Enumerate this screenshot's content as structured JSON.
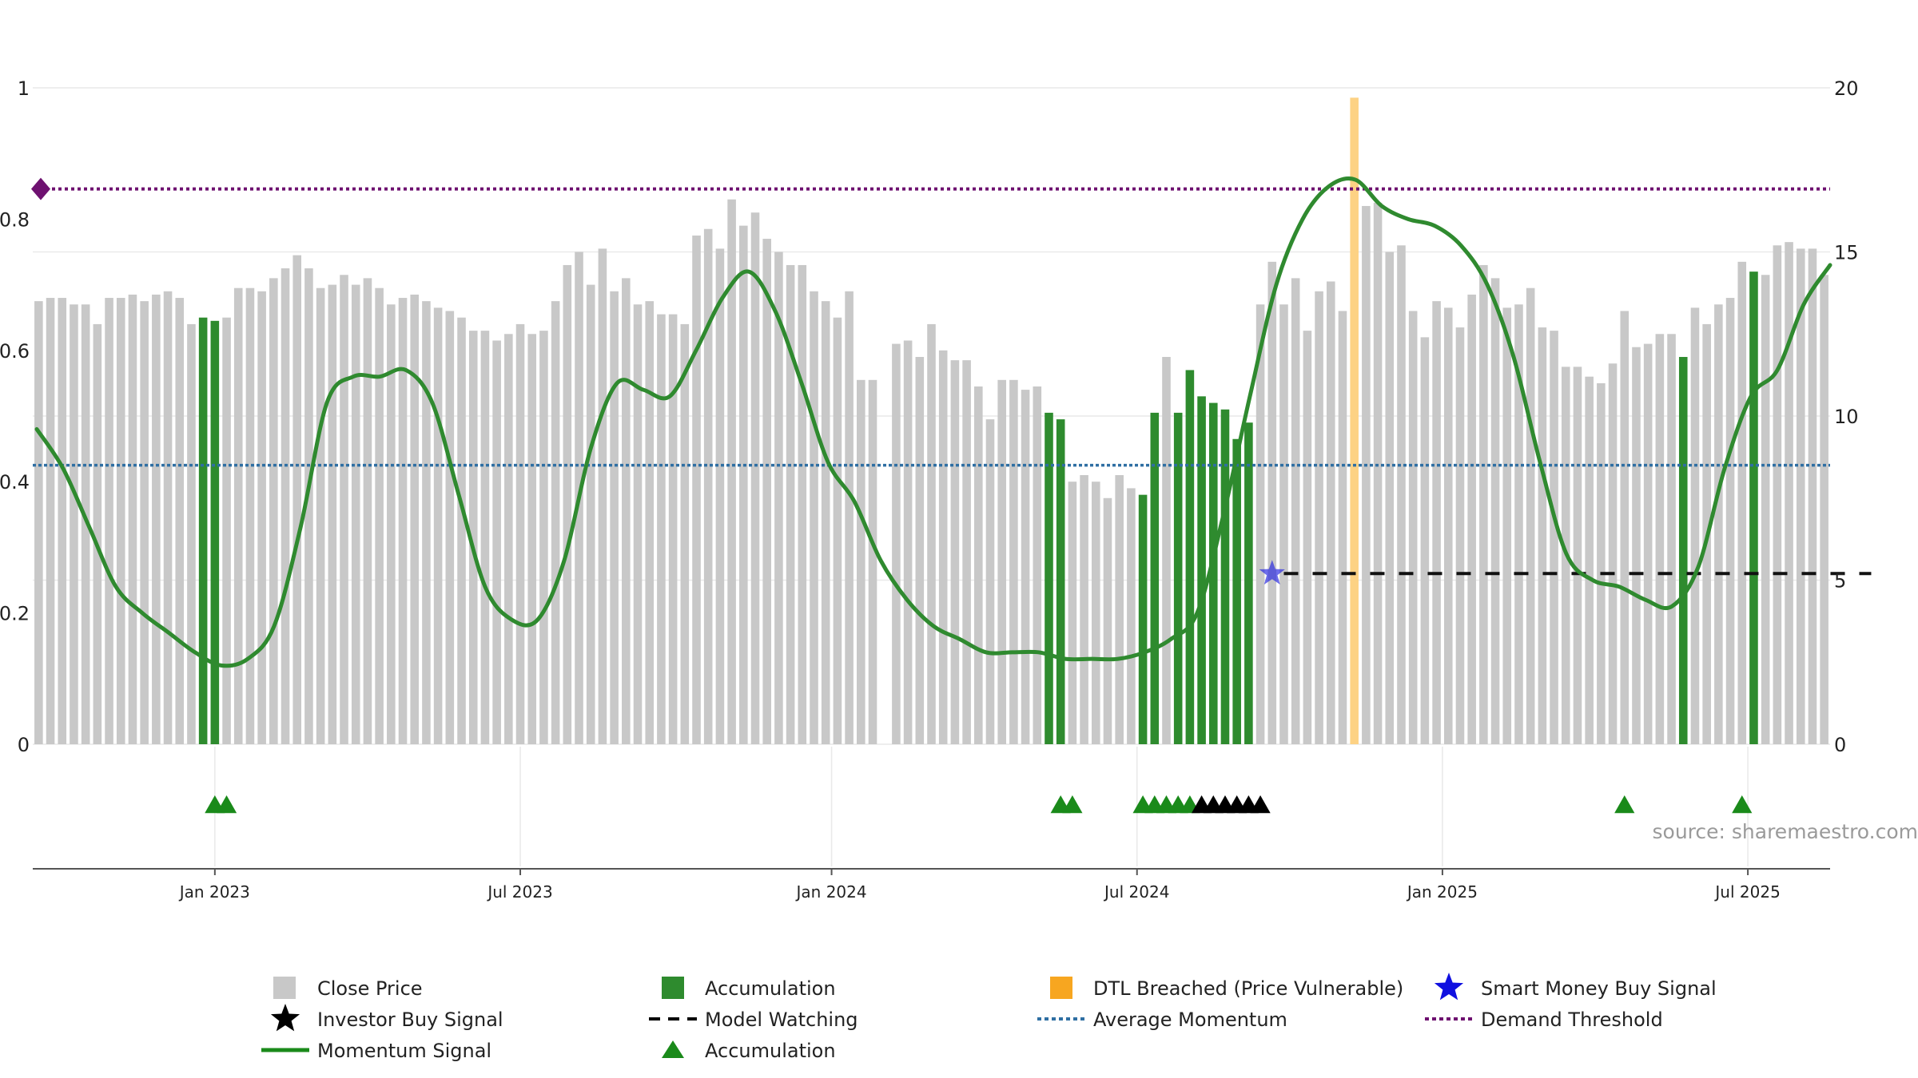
{
  "chart_data": {
    "type": "bar",
    "colors": {
      "close": "#c8c8c8",
      "accumulation": "#2e8b2e",
      "dtl": "#fdd284",
      "momentum": "#2f8a2f",
      "demand": "#6e1170",
      "average": "#2f6fa3",
      "model": "#111111",
      "smart": "#2020e0",
      "grid": "#e9e9e9",
      "axis": "#555555"
    },
    "x_tick_labels": [
      "Jan 2023",
      "Jul 2023",
      "Jan 2024",
      "Jul 2024",
      "Jan 2025",
      "Jul 2025"
    ],
    "x_tick_index": [
      15,
      41,
      67.5,
      93.5,
      119.5,
      145.5
    ],
    "left_ticks": [
      "0",
      "0.2",
      "0.4",
      "0.6",
      "0.8",
      "1"
    ],
    "left_tick_values": [
      0,
      0.2,
      0.4,
      0.6,
      0.8,
      1
    ],
    "right_ticks": [
      "0",
      "5",
      "10",
      "15",
      "20"
    ],
    "right_tick_values": [
      0,
      5,
      10,
      15,
      20
    ],
    "left_ylim": [
      0,
      1
    ],
    "right_ylim": [
      0,
      20
    ],
    "source": "source: sharemaestro.com",
    "close_prices": [
      13.5,
      13.6,
      13.6,
      13.4,
      13.4,
      12.8,
      13.6,
      13.6,
      13.7,
      13.5,
      13.7,
      13.8,
      13.6,
      12.8,
      13.0,
      12.9,
      13.0,
      13.9,
      13.9,
      13.8,
      14.2,
      14.5,
      14.9,
      14.5,
      13.9,
      14.0,
      14.3,
      14.0,
      14.2,
      13.9,
      13.4,
      13.6,
      13.7,
      13.5,
      13.3,
      13.2,
      13.0,
      12.6,
      12.6,
      12.3,
      12.5,
      12.8,
      12.5,
      12.6,
      13.5,
      14.6,
      15.0,
      14.0,
      15.1,
      13.8,
      14.2,
      13.4,
      13.5,
      13.1,
      13.1,
      12.8,
      15.5,
      15.7,
      15.1,
      16.6,
      15.8,
      16.2,
      15.4,
      15.0,
      14.6,
      14.6,
      13.8,
      13.5,
      13.0,
      13.8,
      11.1,
      11.1,
      null,
      12.2,
      12.3,
      11.8,
      12.8,
      12.0,
      11.7,
      11.7,
      10.9,
      9.9,
      11.1,
      11.1,
      10.8,
      10.9,
      10.1,
      9.9,
      8.0,
      8.2,
      8.0,
      7.5,
      8.2,
      7.8,
      7.6,
      10.1,
      11.8,
      10.1,
      11.4,
      10.6,
      10.4,
      10.2,
      9.3,
      9.8,
      13.4,
      14.7,
      13.4,
      14.2,
      12.6,
      13.8,
      14.1,
      13.2,
      19.7,
      16.4,
      16.5,
      15.0,
      15.2,
      13.2,
      12.4,
      13.5,
      13.3,
      12.7,
      13.7,
      14.6,
      14.2,
      13.3,
      13.4,
      13.9,
      12.7,
      12.6,
      11.5,
      11.5,
      11.2,
      11.0,
      11.6,
      13.2,
      12.1,
      12.2,
      12.5,
      12.5,
      11.8,
      13.3,
      12.8,
      13.4,
      13.6,
      14.7,
      14.4,
      14.3,
      15.2,
      15.3,
      15.1,
      15.1,
      14.3
    ],
    "bar_colors": [
      "c",
      "c",
      "c",
      "c",
      "c",
      "c",
      "c",
      "c",
      "c",
      "c",
      "c",
      "c",
      "c",
      "c",
      "a",
      "a",
      "c",
      "c",
      "c",
      "c",
      "c",
      "c",
      "c",
      "c",
      "c",
      "c",
      "c",
      "c",
      "c",
      "c",
      "c",
      "c",
      "c",
      "c",
      "c",
      "c",
      "c",
      "c",
      "c",
      "c",
      "c",
      "c",
      "c",
      "c",
      "c",
      "c",
      "c",
      "c",
      "c",
      "c",
      "c",
      "c",
      "c",
      "c",
      "c",
      "c",
      "c",
      "c",
      "c",
      "c",
      "c",
      "c",
      "c",
      "c",
      "c",
      "c",
      "c",
      "c",
      "c",
      "c",
      "c",
      "c",
      "c",
      "c",
      "c",
      "c",
      "c",
      "c",
      "c",
      "c",
      "c",
      "c",
      "c",
      "c",
      "c",
      "c",
      "a",
      "a",
      "c",
      "c",
      "c",
      "c",
      "c",
      "c",
      "a",
      "a",
      "c",
      "a",
      "a",
      "a",
      "a",
      "a",
      "a",
      "a",
      "c",
      "c",
      "c",
      "c",
      "c",
      "c",
      "c",
      "c",
      "d",
      "c",
      "c",
      "c",
      "c",
      "c",
      "c",
      "c",
      "c",
      "c",
      "c",
      "c",
      "c",
      "c",
      "c",
      "c",
      "c",
      "c",
      "c",
      "c",
      "c",
      "c",
      "c",
      "c",
      "c",
      "c",
      "c",
      "c",
      "a",
      "c",
      "c",
      "c",
      "c",
      "c",
      "a",
      "c",
      "c",
      "c",
      "c",
      "c",
      "c",
      "c",
      "c",
      "c",
      "c"
    ],
    "momentum": [
      0.48,
      0.42,
      0.33,
      0.24,
      0.2,
      0.17,
      0.14,
      0.12,
      0.13,
      0.18,
      0.33,
      0.52,
      0.56,
      0.56,
      0.57,
      0.52,
      0.38,
      0.24,
      0.19,
      0.19,
      0.28,
      0.45,
      0.55,
      0.54,
      0.53,
      0.6,
      0.68,
      0.72,
      0.66,
      0.55,
      0.43,
      0.37,
      0.28,
      0.22,
      0.18,
      0.16,
      0.14,
      0.14,
      0.14,
      0.13,
      0.13,
      0.13,
      0.14,
      0.16,
      0.2,
      0.35,
      0.53,
      0.7,
      0.8,
      0.85,
      0.86,
      0.82,
      0.8,
      0.79,
      0.76,
      0.7,
      0.59,
      0.43,
      0.29,
      0.25,
      0.24,
      0.22,
      0.21,
      0.27,
      0.42,
      0.53,
      0.57,
      0.67,
      0.73
    ],
    "demand_threshold": 0.846,
    "average_momentum": 0.425,
    "model_watching": {
      "start_index": 106,
      "end_index": 156,
      "value": 5.2
    },
    "smart_money_buy_signal": {
      "index": 105,
      "value": 5.2
    },
    "accumulation_markers": [
      15,
      16,
      87,
      88,
      94,
      95,
      96,
      97,
      98,
      135,
      145
    ],
    "investor_buy_markers": [
      99,
      100,
      101,
      102,
      103,
      104
    ],
    "legend": [
      {
        "label": "Close Price",
        "kind": "gray-square"
      },
      {
        "label": "Accumulation",
        "kind": "green-square"
      },
      {
        "label": "DTL Breached (Price Vulnerable)",
        "kind": "orange-square"
      },
      {
        "label": "Smart Money Buy Signal",
        "kind": "blue-star"
      },
      {
        "label": "Investor Buy Signal",
        "kind": "black-star"
      },
      {
        "label": "Model Watching",
        "kind": "black-dash"
      },
      {
        "label": "Average Momentum",
        "kind": "blue-dot"
      },
      {
        "label": "Demand Threshold",
        "kind": "purple-dot"
      },
      {
        "label": "Momentum Signal",
        "kind": "green-line"
      },
      {
        "label": "Accumulation",
        "kind": "green-triangle"
      }
    ]
  }
}
